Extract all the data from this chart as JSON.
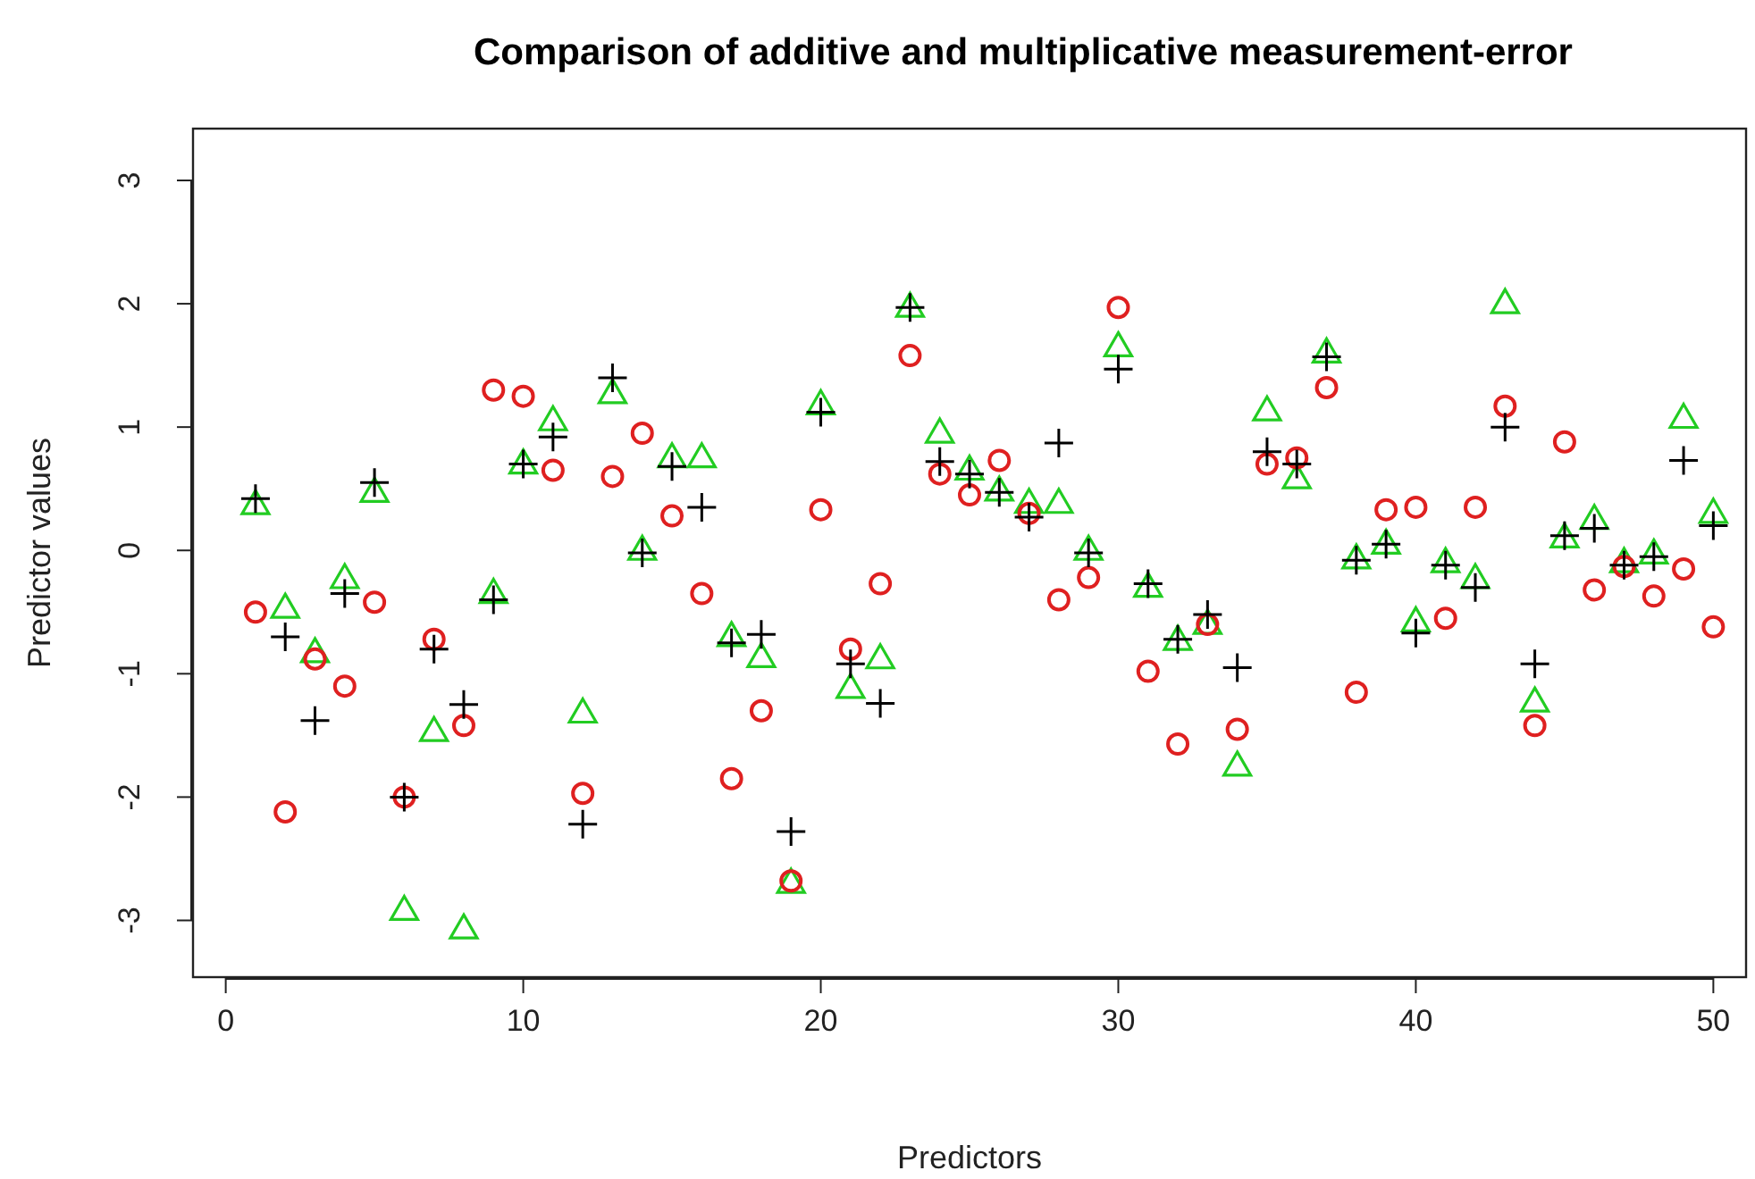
{
  "chart_data": {
    "type": "scatter",
    "title": "Comparison of additive and multiplicative measurement-error",
    "xlabel": "Predictors",
    "ylabel": "Predictor values",
    "x": [
      1,
      2,
      3,
      4,
      5,
      6,
      7,
      8,
      9,
      10,
      11,
      12,
      13,
      14,
      15,
      16,
      17,
      18,
      19,
      20,
      21,
      22,
      23,
      24,
      25,
      26,
      27,
      28,
      29,
      30,
      31,
      32,
      33,
      34,
      35,
      36,
      37,
      38,
      39,
      40,
      41,
      42,
      43,
      44,
      45,
      46,
      47,
      48,
      49,
      50
    ],
    "series": [
      {
        "color": "#000000",
        "marker": "cross",
        "values": [
          0.42,
          -0.7,
          -1.38,
          -0.35,
          0.55,
          -2.0,
          -0.8,
          -1.25,
          -0.4,
          0.7,
          0.92,
          -2.22,
          1.4,
          -0.02,
          0.68,
          0.35,
          -0.75,
          -0.68,
          -2.28,
          1.12,
          -0.92,
          -1.24,
          1.97,
          0.72,
          0.62,
          0.47,
          0.27,
          0.87,
          -0.02,
          1.47,
          -0.27,
          -0.72,
          -0.52,
          -0.95,
          0.8,
          0.7,
          1.57,
          -0.08,
          0.05,
          -0.67,
          -0.12,
          -0.3,
          1.0,
          -0.92,
          0.12,
          0.18,
          -0.12,
          -0.05,
          0.73,
          0.2
        ]
      },
      {
        "color": "#df2020",
        "marker": "circle",
        "values": [
          -0.5,
          -2.12,
          -0.88,
          -1.1,
          -0.42,
          -2.0,
          -0.72,
          -1.42,
          1.3,
          1.25,
          0.65,
          -1.97,
          0.6,
          0.95,
          0.28,
          -0.35,
          -1.85,
          -1.3,
          -2.68,
          0.33,
          -0.8,
          -0.27,
          1.58,
          0.62,
          0.45,
          0.73,
          0.3,
          -0.4,
          -0.22,
          1.97,
          -0.98,
          -1.57,
          -0.6,
          -1.45,
          0.7,
          0.75,
          1.32,
          -1.15,
          0.33,
          0.35,
          -0.55,
          0.35,
          1.17,
          -1.42,
          0.88,
          -0.32,
          -0.13,
          -0.37,
          -0.15,
          -0.62
        ]
      },
      {
        "color": "#22cc22",
        "marker": "triangle",
        "values": [
          0.37,
          -0.47,
          -0.83,
          -0.23,
          0.47,
          -2.92,
          -1.47,
          -3.07,
          -0.35,
          0.7,
          1.05,
          -1.32,
          1.27,
          0.0,
          0.75,
          0.75,
          -0.7,
          -0.87,
          -2.7,
          1.18,
          -1.12,
          -0.88,
          1.97,
          0.95,
          0.65,
          0.48,
          0.38,
          0.38,
          0.0,
          1.65,
          -0.3,
          -0.73,
          -0.6,
          -1.75,
          1.13,
          0.58,
          1.6,
          -0.07,
          0.05,
          -0.58,
          -0.1,
          -0.23,
          2.0,
          -1.23,
          0.1,
          0.25,
          -0.1,
          -0.03,
          1.07,
          0.3
        ]
      }
    ],
    "xlim": [
      -1.1,
      51.1
    ],
    "ylim": [
      -3.46,
      3.42
    ],
    "xticks": [
      0,
      10,
      20,
      30,
      40,
      50
    ],
    "yticks": [
      -3,
      -2,
      -1,
      0,
      1,
      2,
      3
    ],
    "grid": false
  }
}
